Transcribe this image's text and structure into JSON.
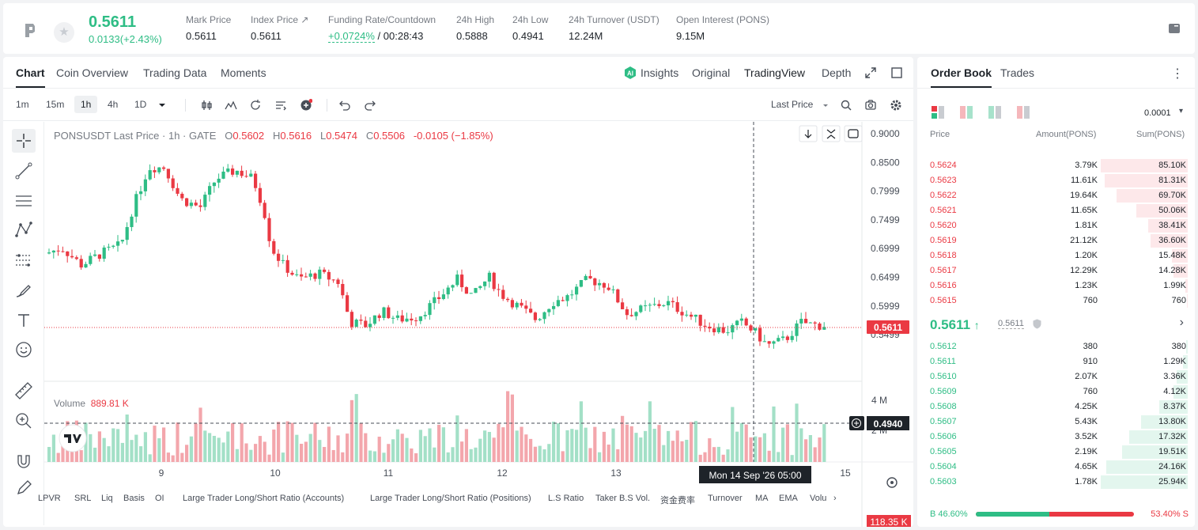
{
  "header": {
    "last_price": "0.5611",
    "change": "0.0133(+2.43%)",
    "stats": [
      {
        "label": "Mark Price",
        "value": "0.5611"
      },
      {
        "label": "Index Price ↗",
        "value": "0.5611"
      },
      {
        "label": "Funding Rate/Countdown",
        "value_green": "+0.0724%",
        "value": "/ 00:28:43"
      },
      {
        "label": "24h High",
        "value": "0.5888"
      },
      {
        "label": "24h Low",
        "value": "0.4941"
      },
      {
        "label": "24h Turnover (USDT)",
        "value": "12.24M"
      },
      {
        "label": "Open Interest (PONS)",
        "value": "9.15M"
      }
    ]
  },
  "chart_tabs": [
    "Chart",
    "Coin Overview",
    "Trading Data",
    "Moments"
  ],
  "view_tabs": [
    "Insights",
    "Original",
    "TradingView",
    "Depth"
  ],
  "timeframes": [
    "1m",
    "15m",
    "1h",
    "4h",
    "1D"
  ],
  "last_price_selector": "Last Price",
  "legend": {
    "symbol": "PONSUSDT Last Price · 1h · GATE",
    "o_label": "O",
    "o": "0.5602",
    "h_label": "H",
    "h": "0.5616",
    "l_label": "L",
    "l": "0.5474",
    "c_label": "C",
    "c": "0.5506",
    "chg": "-0.0105 (−1.85%)"
  },
  "volume_legend": {
    "label": "Volume",
    "value": "889.81 K"
  },
  "price_axis": [
    "0.9000",
    "0.8500",
    "0.7999",
    "0.7499",
    "0.6999",
    "0.6499",
    "0.5999",
    "0.5499"
  ],
  "volume_axis": [
    "4 M",
    "2 M"
  ],
  "last_price_tag": "0.5611",
  "crosshair_price_tag": "0.4940",
  "volume_tag": "118.35 K",
  "x_axis": [
    "9",
    "10",
    "11",
    "12",
    "13",
    "15"
  ],
  "crosshair_time": "Mon 14 Sep '26   05:00",
  "indicators": [
    "LPVR",
    "SRL",
    "Liq",
    "Basis",
    "OI",
    "Large Trader Long/Short Ratio (Accounts)",
    "Large Trader Long/Short Ratio (Positions)",
    "L.S Ratio",
    "Taker B.S Vol.",
    "资金费率",
    "Turnover",
    "MA",
    "EMA",
    "Volu"
  ],
  "colors": {
    "up": "#2ebd85",
    "down": "#ea3943"
  },
  "order_book": {
    "tabs": [
      "Order Book",
      "Trades"
    ],
    "precision": "0.0001",
    "headers": [
      "Price",
      "Amount(PONS)",
      "Sum(PONS)"
    ],
    "asks": [
      {
        "price": "0.5624",
        "amount": "3.79K",
        "sum": "85.10K",
        "depth": 1.0
      },
      {
        "price": "0.5623",
        "amount": "11.61K",
        "sum": "81.31K",
        "depth": 0.955
      },
      {
        "price": "0.5622",
        "amount": "19.64K",
        "sum": "69.70K",
        "depth": 0.819
      },
      {
        "price": "0.5621",
        "amount": "11.65K",
        "sum": "50.06K",
        "depth": 0.588
      },
      {
        "price": "0.5620",
        "amount": "1.81K",
        "sum": "38.41K",
        "depth": 0.451
      },
      {
        "price": "0.5619",
        "amount": "21.12K",
        "sum": "36.60K",
        "depth": 0.43
      },
      {
        "price": "0.5618",
        "amount": "1.20K",
        "sum": "15.48K",
        "depth": 0.182
      },
      {
        "price": "0.5617",
        "amount": "12.29K",
        "sum": "14.28K",
        "depth": 0.168
      },
      {
        "price": "0.5616",
        "amount": "1.23K",
        "sum": "1.99K",
        "depth": 0.023
      },
      {
        "price": "0.5615",
        "amount": "760",
        "sum": "760",
        "depth": 0.009
      }
    ],
    "mid_price": "0.5611",
    "mid_sub": "0.5611",
    "bids": [
      {
        "price": "0.5612",
        "amount": "380",
        "sum": "380",
        "depth": 0.015
      },
      {
        "price": "0.5611",
        "amount": "910",
        "sum": "1.29K",
        "depth": 0.05
      },
      {
        "price": "0.5610",
        "amount": "2.07K",
        "sum": "3.36K",
        "depth": 0.13
      },
      {
        "price": "0.5609",
        "amount": "760",
        "sum": "4.12K",
        "depth": 0.16
      },
      {
        "price": "0.5608",
        "amount": "4.25K",
        "sum": "8.37K",
        "depth": 0.325
      },
      {
        "price": "0.5607",
        "amount": "5.43K",
        "sum": "13.80K",
        "depth": 0.535
      },
      {
        "price": "0.5606",
        "amount": "3.52K",
        "sum": "17.32K",
        "depth": 0.672
      },
      {
        "price": "0.5605",
        "amount": "2.19K",
        "sum": "19.51K",
        "depth": 0.757
      },
      {
        "price": "0.5604",
        "amount": "4.65K",
        "sum": "24.16K",
        "depth": 0.937
      },
      {
        "price": "0.5603",
        "amount": "1.78K",
        "sum": "25.94K",
        "depth": 1.0
      }
    ],
    "buy_ratio": "B 46.60%",
    "sell_ratio": "53.40% S",
    "buy_fraction": 0.466
  }
}
